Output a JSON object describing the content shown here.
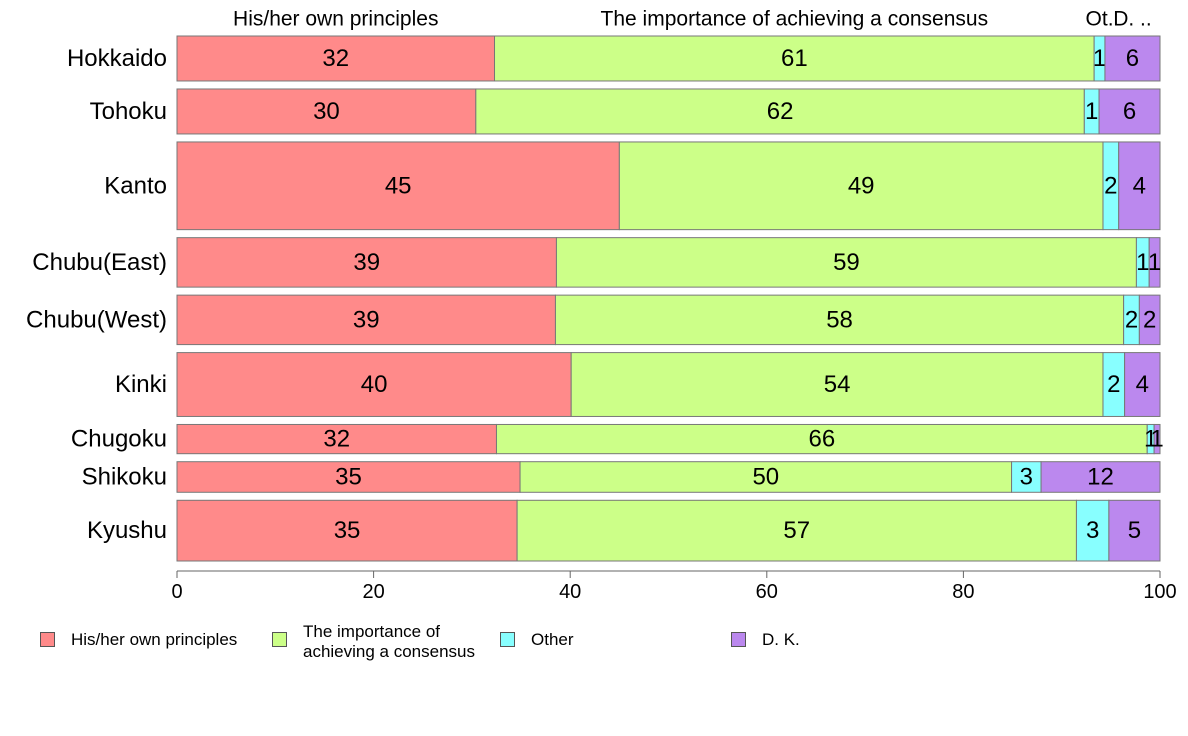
{
  "chart_data": {
    "type": "bar",
    "orientation": "horizontal",
    "stacked": true,
    "categories": [
      "Hokkaido",
      "Tohoku",
      "Kanto",
      "Chubu(East)",
      "Chubu(West)",
      "Kinki",
      "Chugoku",
      "Shikoku",
      "Kyushu"
    ],
    "series": [
      {
        "name": "His/her own principles",
        "color": "#ff8a8a",
        "values": [
          32.3,
          30.4,
          45.0,
          38.6,
          38.5,
          40.1,
          32.5,
          34.9,
          34.6
        ],
        "labels": [
          "32",
          "30",
          "45",
          "39",
          "39",
          "40",
          "32",
          "35",
          "35"
        ]
      },
      {
        "name": "The importance of achieving a consensus",
        "color": "#ccff88",
        "values": [
          61.0,
          61.9,
          49.2,
          59.0,
          57.8,
          54.1,
          66.2,
          50.0,
          56.9
        ],
        "labels": [
          "61",
          "62",
          "49",
          "59",
          "58",
          "54",
          "66",
          "50",
          "57"
        ]
      },
      {
        "name": "Other",
        "color": "#88ffff",
        "values": [
          1.1,
          1.5,
          1.6,
          1.3,
          1.6,
          2.2,
          0.7,
          3.0,
          3.3
        ],
        "labels": [
          "1",
          "1",
          "2",
          "1",
          "2",
          "2",
          "1",
          "3",
          "3"
        ]
      },
      {
        "name": "D. K.",
        "color": "#bb88ee",
        "values": [
          5.6,
          6.2,
          4.2,
          1.1,
          2.1,
          3.6,
          0.6,
          12.1,
          5.2
        ],
        "labels": [
          "6",
          "6",
          "4",
          "1",
          "2",
          "4",
          "1",
          "12",
          "5"
        ]
      }
    ],
    "bar_weights": [
      1.0,
      1.0,
      1.95,
      1.1,
      1.1,
      1.42,
      0.65,
      0.68,
      1.35
    ],
    "top_labels": [
      "His/her own principles",
      "The importance of achieving a consensus",
      "Ot.",
      "D. .."
    ],
    "xlim": [
      0,
      100
    ],
    "xticks": [
      0,
      20,
      40,
      60,
      80,
      100
    ],
    "legend": {
      "position": "bottom",
      "items": [
        "His/her own principles",
        "The importance of\nachieving a consensus",
        "Other",
        "D. K."
      ]
    }
  }
}
